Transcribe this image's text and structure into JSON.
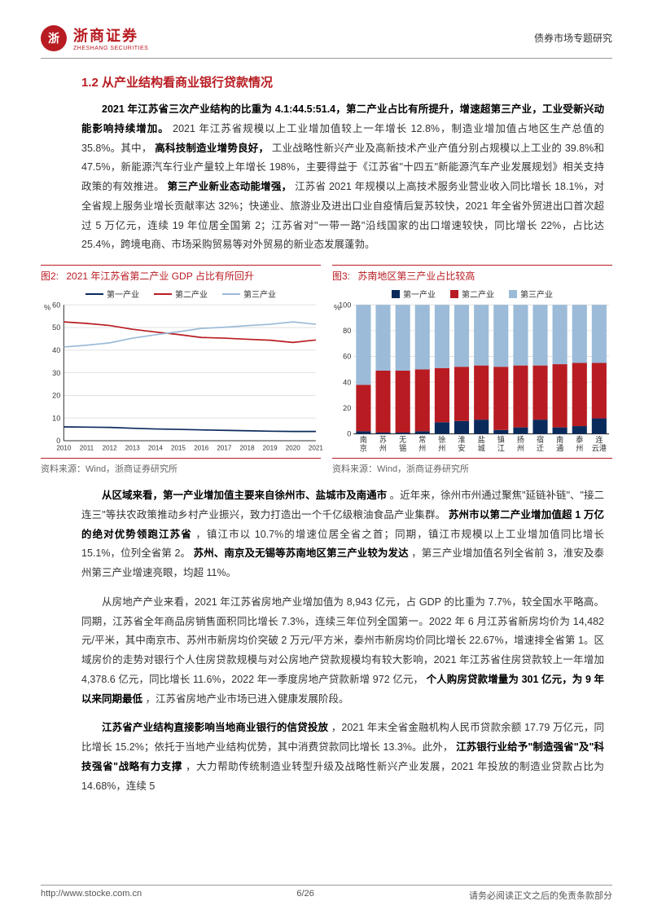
{
  "header": {
    "logo_cn": "浙商证券",
    "logo_en": "ZHESHANG SECURITIES",
    "logo_mark": "浙",
    "doc_type": "债券市场专题研究"
  },
  "section": {
    "number": "1.2",
    "title": "从产业结构看商业银行贷款情况"
  },
  "para1_lead": "2021 年江苏省三次产业结构的比重为 4.1:44.5:51.4，第二产业占比有所提升，增速超第三产业，工业受新兴动能影响持续增加。",
  "para1_rest": "2021 年江苏省规模以上工业增加值较上一年增长 12.8%，制造业增加值占地区生产总值的 35.8%。其中，",
  "para1_b2": "高科技制造业增势良好，",
  "para1_rest2": "工业战略性新兴产业及高新技术产业产值分别占规模以上工业的 39.8%和 47.5%，新能源汽车行业产量较上年增长 198%，主要得益于《江苏省\"十四五\"新能源汽车产业发展规划》相关支持政策的有效推进。",
  "para1_b3": "第三产业新业态动能增强，",
  "para1_rest3": "江苏省 2021 年规模以上高技术服务业营业收入同比增长 18.1%，对全省规上服务业增长贡献率达 32%；快递业、旅游业及进出口业自疫情后复苏较快，2021 年全省外贸进出口首次超过 5 万亿元，连续 19 年位居全国第 2；江苏省对\"一带一路\"沿线国家的出口增速较快，同比增长 22%，占比达 25.4%，跨境电商、市场采购贸易等对外贸易的新业态发展蓬勃。",
  "chart2": {
    "label": "图2:",
    "title": "2021 年江苏省第二产业 GDP 占比有所回升",
    "source": "资料来源：Wind，浙商证券研究所",
    "y_label": "%",
    "legend": [
      "第一产业",
      "第二产业",
      "第三产业"
    ],
    "colors": [
      "#0a2a5c",
      "#b81c22",
      "#9bbbd8"
    ],
    "x_labels": [
      "2010",
      "2011",
      "2012",
      "2013",
      "2014",
      "2015",
      "2016",
      "2017",
      "2018",
      "2019",
      "2020",
      "2021"
    ],
    "ylim": [
      0,
      60
    ],
    "ytick_step": 10,
    "series": {
      "primary": [
        6.1,
        6.0,
        5.9,
        5.5,
        5.2,
        5.0,
        4.8,
        4.6,
        4.4,
        4.2,
        4.1,
        4.1
      ],
      "secondary": [
        52.5,
        51.8,
        50.9,
        49.2,
        48.0,
        46.9,
        45.6,
        45.3,
        44.8,
        44.4,
        43.4,
        44.5
      ],
      "tertiary": [
        41.4,
        42.2,
        43.2,
        45.3,
        46.8,
        48.1,
        49.6,
        50.1,
        50.8,
        51.4,
        52.5,
        51.4
      ]
    },
    "grid_color": "#dddddd",
    "axis_color": "#333333",
    "bg": "#ffffff",
    "axis_fontsize": 9
  },
  "chart3": {
    "label": "图3:",
    "title": "苏南地区第三产业占比较高",
    "source": "资料来源：Wind，浙商证券研究所",
    "y_label": "%",
    "legend": [
      "第一产业",
      "第二产业",
      "第三产业"
    ],
    "colors": [
      "#0a2a5c",
      "#b81c22",
      "#9bbbd8"
    ],
    "x_labels": [
      "南京",
      "苏州",
      "无锡",
      "常州",
      "徐州",
      "淮安",
      "盐城",
      "镇江",
      "扬州",
      "宿迁",
      "南通",
      "泰州",
      "连云港"
    ],
    "ylim": [
      0,
      100
    ],
    "ytick_step": 20,
    "data": [
      {
        "p": 2,
        "s": 36,
        "t": 62
      },
      {
        "p": 1,
        "s": 48,
        "t": 51
      },
      {
        "p": 1,
        "s": 48,
        "t": 51
      },
      {
        "p": 2,
        "s": 48,
        "t": 50
      },
      {
        "p": 9,
        "s": 42,
        "t": 49
      },
      {
        "p": 10,
        "s": 42,
        "t": 48
      },
      {
        "p": 11,
        "s": 42,
        "t": 47
      },
      {
        "p": 3,
        "s": 49,
        "t": 48
      },
      {
        "p": 5,
        "s": 48,
        "t": 47
      },
      {
        "p": 11,
        "s": 42,
        "t": 47
      },
      {
        "p": 5,
        "s": 49,
        "t": 46
      },
      {
        "p": 6,
        "s": 49,
        "t": 45
      },
      {
        "p": 12,
        "s": 43,
        "t": 45
      }
    ],
    "grid_color": "#dddddd",
    "axis_color": "#333333",
    "bar_gap": 0.25,
    "bg": "#ffffff",
    "axis_fontsize": 9
  },
  "para2_b1": "从区域来看，第一产业增加值主要来自徐州市、盐城市及南通市",
  "para2_r1": "。近年来，徐州市州通过聚焦\"延链补链\"、\"接二连三\"等扶农政策推动乡村产业振兴，致力打造出一个千亿级粮油食品产业集群。",
  "para2_b2": "苏州市以第二产业增加值超 1 万亿的绝对优势领跑江苏省",
  "para2_r2": "，镇江市以 10.7%的增速位居全省之首；同期，镇江市规模以上工业增加值同比增长 15.1%，位列全省第 2。",
  "para2_b3": "苏州、南京及无锡等苏南地区第三产业较为发达",
  "para2_r3": "，第三产业增加值名列全省前 3，淮安及泰州第三产业增速亮眼，均超 11%。",
  "para3": "从房地产产业来看，2021 年江苏省房地产业增加值为 8,943 亿元，占 GDP 的比重为 7.7%，较全国水平略高。同期，江苏省全年商品房销售面积同比增长 7.3%，连续三年位列全国第一。2022 年 6 月江苏省新房均价为 14,482 元/平米，其中南京市、苏州市新房均价突破 2 万元/平方米，泰州市新房均价同比增长 22.67%，增速排全省第 1。区域房价的走势对银行个人住房贷款规模与对公房地产贷款规模均有较大影响，2021 年江苏省住房贷款较上一年增加 4,378.6 亿元，同比增长 11.6%，2022 年一季度房地产贷款新增 972 亿元，",
  "para3_b1": "个人购房贷款增量为 301 亿元，为 9 年以来同期最低",
  "para3_r1": "，江苏省房地产业市场已进入健康发展阶段。",
  "para4_b1": "江苏省产业结构直接影响当地商业银行的信贷投放",
  "para4_r1": "，2021 年末全省金融机构人民币贷款余额 17.79 万亿元，同比增长 15.2%；依托于当地产业结构优势，其中消费贷款同比增长 13.3%。此外，",
  "para4_b2": "江苏银行业给予\"制造强省\"及\"科技强省\"战略有力支撑",
  "para4_r2": "，大力帮助传统制造业转型升级及战略性新兴产业发展，2021 年投放的制造业贷款占比为 14.68%，连续 5",
  "footer": {
    "url": "http://www.stocke.com.cn",
    "page": "6/26",
    "disclaimer": "请务必阅读正文之后的免责条款部分"
  }
}
